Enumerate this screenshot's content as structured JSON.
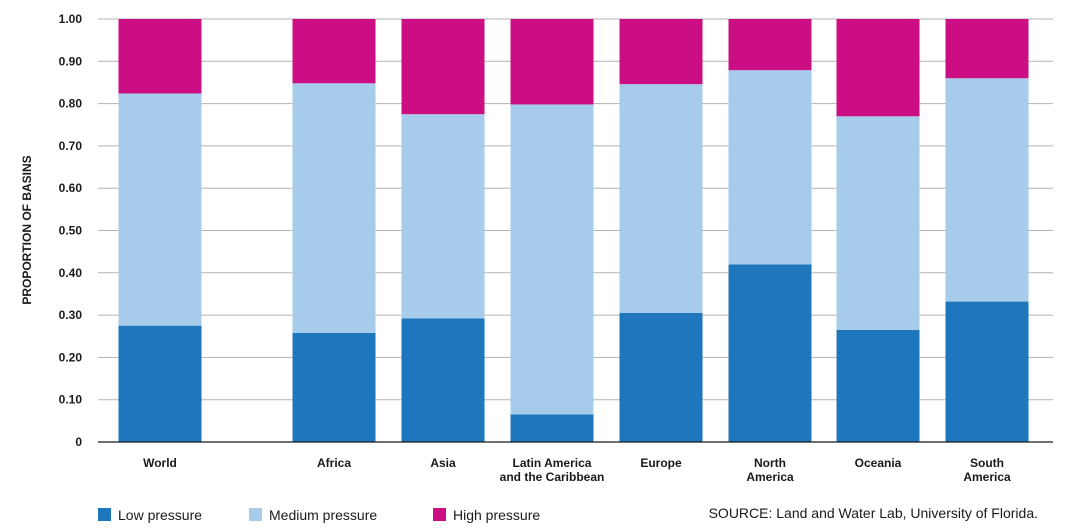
{
  "chart_data": {
    "type": "bar",
    "stacked": true,
    "title": "",
    "xlabel": "",
    "ylabel": "PROPORTION OF BASINS",
    "ylim": [
      0,
      1
    ],
    "yticks": [
      "0",
      "0.10",
      "0.20",
      "0.30",
      "0.40",
      "0.50",
      "0.60",
      "0.70",
      "0.80",
      "0.90",
      "1.00"
    ],
    "categories": [
      [
        "World"
      ],
      [
        "Africa"
      ],
      [
        "Asia"
      ],
      [
        "Latin America",
        "and the Caribbean"
      ],
      [
        "Europe"
      ],
      [
        "North",
        "America"
      ],
      [
        "Oceania"
      ],
      [
        "South",
        "America"
      ]
    ],
    "series": [
      {
        "name": "Low pressure",
        "color": "#1e76bd",
        "values": [
          0.275,
          0.258,
          0.292,
          0.065,
          0.305,
          0.42,
          0.265,
          0.332
        ]
      },
      {
        "name": "Medium pressure",
        "color": "#a6cbeb",
        "values": [
          0.549,
          0.59,
          0.483,
          0.733,
          0.541,
          0.459,
          0.505,
          0.528
        ]
      },
      {
        "name": "High pressure",
        "color": "#cc0e84",
        "values": [
          0.176,
          0.152,
          0.225,
          0.202,
          0.154,
          0.121,
          0.23,
          0.14
        ]
      }
    ],
    "legend": "bottom-left",
    "source": "SOURCE: Land and Water Lab, University of Florida."
  }
}
